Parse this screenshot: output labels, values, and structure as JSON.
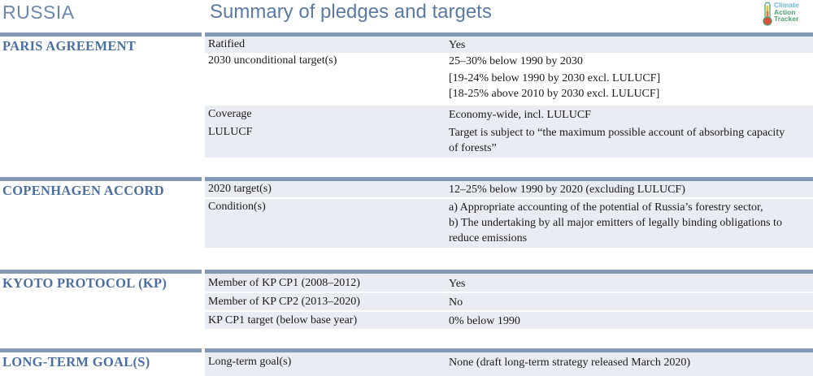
{
  "header": {
    "country": "RUSSIA",
    "title": "Summary of pledges and targets",
    "logo": {
      "line1": "Climate",
      "line2": "Action",
      "line3": "Tracker"
    }
  },
  "colors": {
    "accent": "#8298b5",
    "heading": "#4a6fa0",
    "shade": "#e9ecf2"
  },
  "sections": [
    {
      "title": "PARIS AGREEMENT",
      "rows": [
        {
          "label": "Ratified",
          "value": [
            "Yes"
          ]
        },
        {
          "label": "2030 unconditional target(s)",
          "value": [
            "25–30% below 1990 by 2030"
          ]
        },
        {
          "label": "",
          "value": [
            "[19-24% below 1990 by 2030 excl. LULUCF]",
            "[18-25% above 2010 by 2030 excl. LULUCF]"
          ]
        },
        {
          "label": "Coverage",
          "value": [
            "Economy-wide, incl. LULUCF"
          ]
        },
        {
          "label": "LULUCF",
          "value": [
            "Target is subject to “the maximum possible account of absorbing capacity",
            "of forests”"
          ]
        }
      ]
    },
    {
      "title": "COPENHAGEN ACCORD",
      "rows": [
        {
          "label": "2020 target(s)",
          "value": [
            "12–25% below 1990 by 2020 (excluding LULUCF)"
          ]
        },
        {
          "label": "Condition(s)",
          "value": [
            "a) Appropriate accounting of the potential of Russia’s forestry sector,",
            "b) The undertaking by all major emitters of legally binding obligations to",
            "reduce emissions"
          ]
        }
      ]
    },
    {
      "title": "KYOTO PROTOCOL (KP)",
      "rows": [
        {
          "label": "Member of KP CP1 (2008–2012)",
          "value": [
            "Yes"
          ]
        },
        {
          "label": "Member of KP CP2 (2013–2020)",
          "value": [
            "No"
          ]
        },
        {
          "label": "KP CP1 target (below base year)",
          "value": [
            "0% below 1990"
          ]
        }
      ]
    },
    {
      "title": "LONG-TERM GOAL(S)",
      "rows": [
        {
          "label": "Long-term goal(s)",
          "value": [
            "None (draft long-term strategy released March 2020)"
          ]
        }
      ]
    }
  ]
}
